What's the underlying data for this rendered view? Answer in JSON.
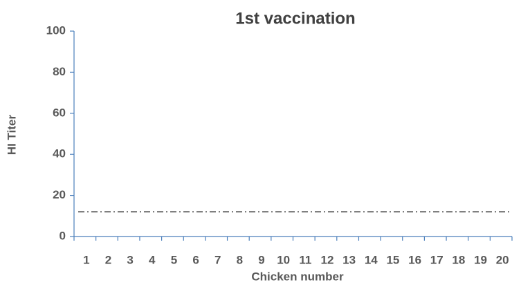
{
  "chart_data": {
    "type": "bar",
    "title": "1st vaccination",
    "x_label": "Chicken number",
    "y_label": "HI Titer",
    "categories": [
      1,
      2,
      3,
      4,
      5,
      6,
      7,
      8,
      9,
      10,
      11,
      12,
      13,
      14,
      15,
      16,
      17,
      18,
      19,
      20
    ],
    "values": [
      0,
      0,
      0,
      0,
      0,
      0,
      0,
      0,
      0,
      0,
      0,
      0,
      0,
      0,
      0,
      0,
      0,
      0,
      0,
      0
    ],
    "color": "#4f81bd",
    "axis_color": "#4a7ebb",
    "reference_line": 12,
    "reference_color": "#000000",
    "ylim": [
      0,
      100
    ],
    "yticks": [
      0,
      20,
      40,
      60,
      80,
      100
    ],
    "grid": false
  }
}
